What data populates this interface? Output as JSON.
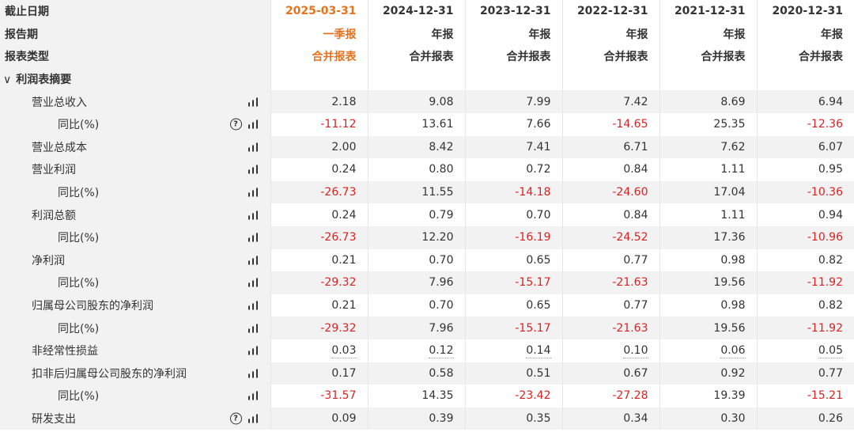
{
  "header": {
    "date_label": "截止日期",
    "period_label": "报告期",
    "type_label": "报表类型",
    "dates": [
      "2025-03-31",
      "2024-12-31",
      "2023-12-31",
      "2022-12-31",
      "2021-12-31",
      "2020-12-31"
    ],
    "periods": [
      "一季报",
      "年报",
      "年报",
      "年报",
      "年报",
      "年报"
    ],
    "types": [
      "合并报表",
      "合并报表",
      "合并报表",
      "合并报表",
      "合并报表",
      "合并报表"
    ],
    "highlight_color": "#e8711c"
  },
  "section": {
    "title": "利润表摘要",
    "chevron": "∨"
  },
  "rows": [
    {
      "label": "营业总收入",
      "values": [
        "2.18",
        "9.08",
        "7.99",
        "7.42",
        "8.69",
        "6.94"
      ]
    },
    {
      "label": "同比(%)",
      "values": [
        "-11.12",
        "13.61",
        "7.66",
        "-14.65",
        "25.35",
        "-12.36"
      ]
    },
    {
      "label": "营业总成本",
      "values": [
        "2.00",
        "8.42",
        "7.41",
        "6.71",
        "7.62",
        "6.07"
      ]
    },
    {
      "label": "营业利润",
      "values": [
        "0.24",
        "0.80",
        "0.72",
        "0.84",
        "1.11",
        "0.95"
      ]
    },
    {
      "label": "同比(%)",
      "values": [
        "-26.73",
        "11.55",
        "-14.18",
        "-24.60",
        "17.04",
        "-10.36"
      ]
    },
    {
      "label": "利润总额",
      "values": [
        "0.24",
        "0.79",
        "0.70",
        "0.84",
        "1.11",
        "0.94"
      ]
    },
    {
      "label": "同比(%)",
      "values": [
        "-26.73",
        "12.20",
        "-16.19",
        "-24.52",
        "17.36",
        "-10.96"
      ]
    },
    {
      "label": "净利润",
      "values": [
        "0.21",
        "0.70",
        "0.65",
        "0.77",
        "0.98",
        "0.82"
      ]
    },
    {
      "label": "同比(%)",
      "values": [
        "-29.32",
        "7.96",
        "-15.17",
        "-21.63",
        "19.56",
        "-11.92"
      ]
    },
    {
      "label": "归属母公司股东的净利润",
      "values": [
        "0.21",
        "0.70",
        "0.65",
        "0.77",
        "0.98",
        "0.82"
      ]
    },
    {
      "label": "同比(%)",
      "values": [
        "-29.32",
        "7.96",
        "-15.17",
        "-21.63",
        "19.56",
        "-11.92"
      ]
    },
    {
      "label": "非经常性损益",
      "values": [
        "0.03",
        "0.12",
        "0.14",
        "0.10",
        "0.06",
        "0.05"
      ]
    },
    {
      "label": "扣非后归属母公司股东的净利润",
      "values": [
        "0.17",
        "0.58",
        "0.51",
        "0.67",
        "0.92",
        "0.77"
      ]
    },
    {
      "label": "同比(%)",
      "values": [
        "-31.57",
        "14.35",
        "-23.42",
        "-27.28",
        "19.39",
        "-15.21"
      ]
    },
    {
      "label": "研发支出",
      "values": [
        "0.09",
        "0.39",
        "0.35",
        "0.34",
        "0.30",
        "0.26"
      ]
    }
  ],
  "help_icon_glyph": "?",
  "colors": {
    "negative": "#e02020",
    "row_stripe": "#f2f2f2",
    "label_bg": "#f2f2f2"
  }
}
